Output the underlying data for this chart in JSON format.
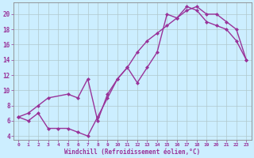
{
  "xlabel": "Windchill (Refroidissement éolien,°C)",
  "bg_color": "#cceeff",
  "line_color": "#993399",
  "markersize": 2.5,
  "linewidth": 1.0,
  "xlim": [
    -0.5,
    23.5
  ],
  "ylim": [
    3.5,
    21.5
  ],
  "yticks": [
    4,
    6,
    8,
    10,
    12,
    14,
    16,
    18,
    20
  ],
  "xticks": [
    0,
    1,
    2,
    3,
    4,
    5,
    6,
    7,
    8,
    9,
    10,
    11,
    12,
    13,
    14,
    15,
    16,
    17,
    18,
    19,
    20,
    21,
    22,
    23
  ],
  "line1_x": [
    0,
    1,
    2,
    3,
    4,
    5,
    6,
    7,
    8,
    9,
    10,
    11,
    12,
    13,
    14,
    15,
    16,
    17,
    18,
    19,
    20,
    21,
    22,
    23
  ],
  "line1_y": [
    6.5,
    6.0,
    7.0,
    5.0,
    5.0,
    5.0,
    4.5,
    4.0,
    6.5,
    9.0,
    11.5,
    13.0,
    11.0,
    13.0,
    15.0,
    20.0,
    19.5,
    21.0,
    20.5,
    19.0,
    18.5,
    18.0,
    16.5,
    14.0
  ],
  "line2_x": [
    0,
    1,
    2,
    3,
    5,
    6,
    7,
    8,
    9,
    10,
    11,
    12,
    13,
    14,
    15,
    16,
    17,
    18,
    19,
    20,
    21,
    22,
    23
  ],
  "line2_y": [
    6.5,
    7.0,
    8.0,
    9.0,
    9.5,
    9.0,
    11.5,
    6.0,
    9.5,
    11.5,
    13.0,
    15.0,
    16.5,
    17.5,
    18.5,
    19.5,
    20.5,
    21.0,
    20.0,
    20.0,
    19.0,
    18.0,
    14.0
  ],
  "grid_color": "#b0c8cc",
  "spine_color": "#888888"
}
